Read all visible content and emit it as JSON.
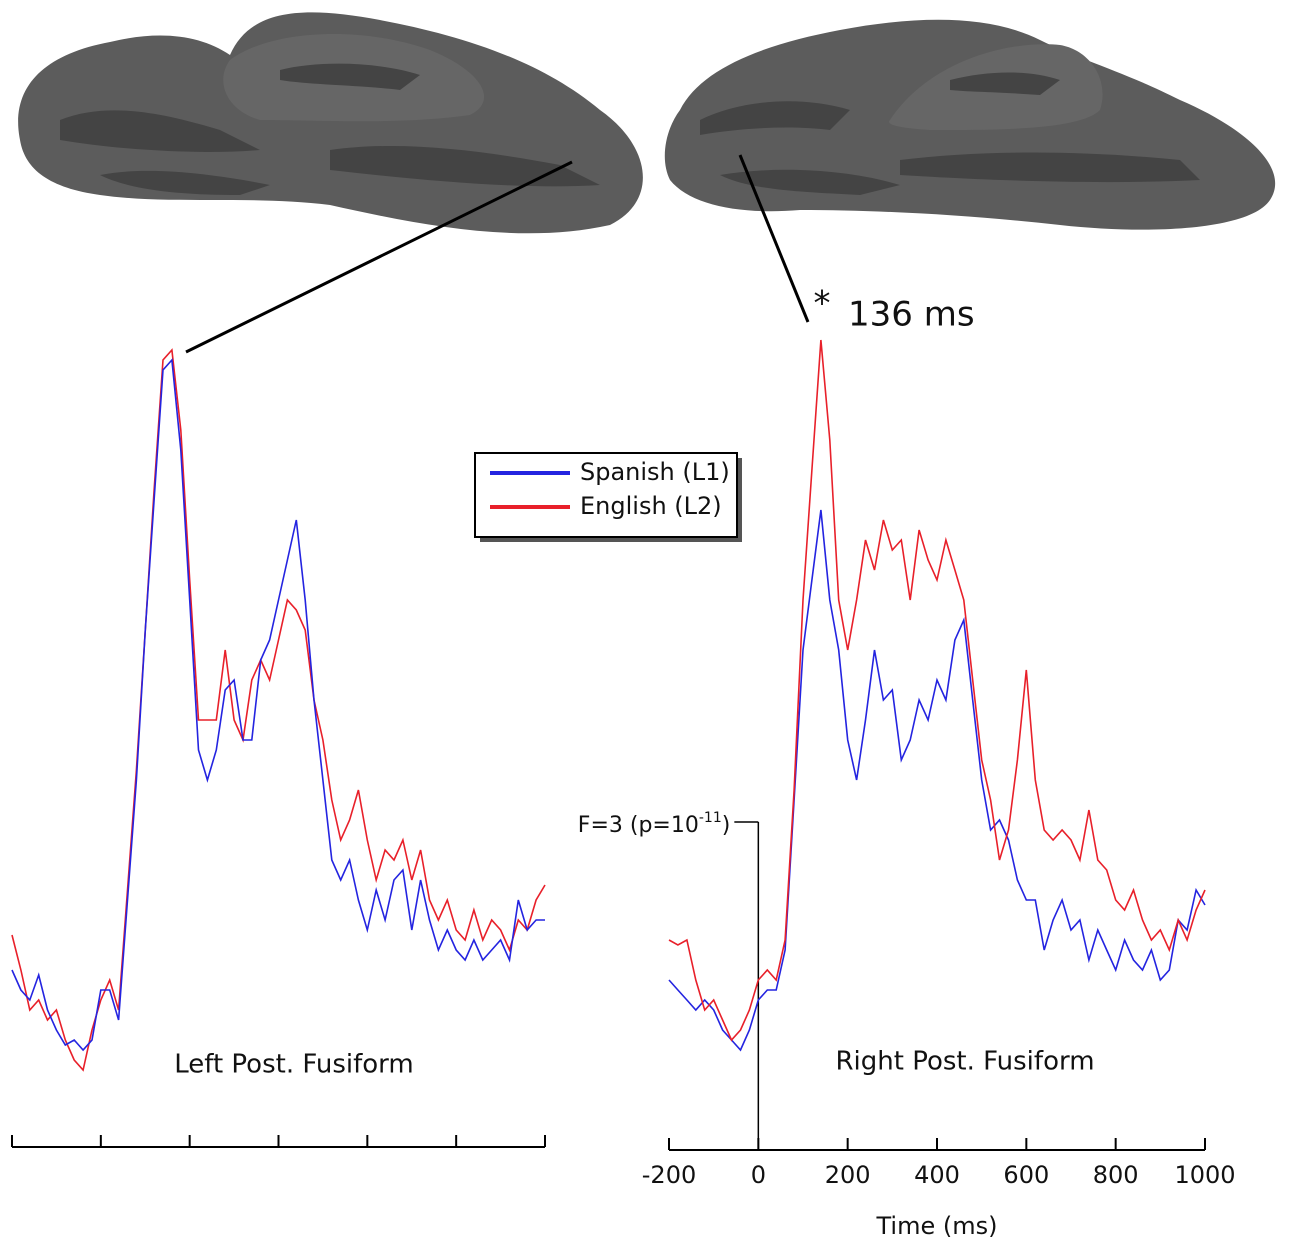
{
  "chart_data": [
    {
      "type": "line",
      "title": "Left Post. Fusiform",
      "show_tick_labels": false,
      "x": [
        -200,
        -180,
        -160,
        -140,
        -120,
        -100,
        -80,
        -60,
        -40,
        -20,
        0,
        20,
        40,
        60,
        80,
        100,
        120,
        140,
        160,
        180,
        200,
        220,
        240,
        260,
        280,
        300,
        320,
        340,
        360,
        380,
        400,
        420,
        440,
        460,
        480,
        500,
        520,
        540,
        560,
        580,
        600,
        620,
        640,
        660,
        680,
        700,
        720,
        740,
        760,
        780,
        800,
        820,
        840,
        860,
        880,
        900,
        920,
        940,
        960,
        980,
        1000
      ],
      "xlim": [
        -200,
        1000
      ],
      "xticks": [
        -200,
        0,
        200,
        400,
        600,
        800,
        1000
      ],
      "ylim": [
        0,
        80
      ],
      "series": [
        {
          "color": "#e8202a",
          "values": [
            16.5,
            13,
            9,
            10,
            8,
            9,
            6,
            4,
            3,
            7,
            10,
            12,
            9,
            21,
            33,
            47,
            61,
            74,
            75,
            67,
            52,
            38,
            38,
            38,
            45,
            38,
            36,
            42,
            44,
            42,
            46,
            50,
            49,
            47,
            40,
            36,
            30,
            26,
            28,
            31,
            26,
            22,
            25,
            24,
            26,
            22,
            25,
            20,
            18,
            20,
            17,
            16,
            19,
            16,
            18,
            17,
            15,
            18,
            17,
            20,
            21.5
          ]
        },
        {
          "color": "#2424e0",
          "values": [
            13,
            11,
            10,
            12.5,
            9,
            7,
            5.5,
            6,
            5,
            6,
            11,
            11,
            8,
            20,
            32,
            47,
            60,
            73,
            74,
            65,
            50,
            35,
            32,
            35,
            41,
            42,
            36,
            36,
            44,
            46,
            50,
            54,
            58,
            50,
            40,
            32,
            24,
            22,
            24,
            20,
            17,
            21,
            18,
            22,
            23,
            17,
            22,
            18,
            15,
            17,
            15,
            14,
            16,
            14,
            15,
            16,
            14,
            20,
            17,
            18,
            18
          ]
        }
      ]
    },
    {
      "type": "line",
      "title": "Right Post. Fusiform",
      "xlabel": "Time (ms)",
      "show_tick_labels": true,
      "x": [
        -200,
        -180,
        -160,
        -140,
        -120,
        -100,
        -80,
        -60,
        -40,
        -20,
        0,
        20,
        40,
        60,
        80,
        100,
        120,
        140,
        160,
        180,
        200,
        220,
        240,
        260,
        280,
        300,
        320,
        340,
        360,
        380,
        400,
        420,
        440,
        460,
        480,
        500,
        520,
        540,
        560,
        580,
        600,
        620,
        640,
        660,
        680,
        700,
        720,
        740,
        760,
        780,
        800,
        820,
        840,
        860,
        880,
        900,
        920,
        940,
        960,
        980,
        1000
      ],
      "xlim": [
        -200,
        1000
      ],
      "xticks": [
        -200,
        0,
        200,
        400,
        600,
        800,
        1000
      ],
      "ylim": [
        0,
        80
      ],
      "series": [
        {
          "name": "Spanish (L1)",
          "color": "#2424e0",
          "values": [
            12,
            11,
            10,
            9,
            10,
            9,
            7,
            6,
            5,
            7,
            10,
            11,
            11,
            15,
            30,
            45,
            52,
            59,
            50,
            45,
            36,
            32,
            38,
            45,
            40,
            41,
            34,
            36,
            40,
            38,
            42,
            40,
            46,
            48,
            40,
            32,
            27,
            28,
            26,
            22,
            20,
            20,
            15,
            18,
            20,
            17,
            18,
            14,
            17,
            15,
            13,
            16,
            14,
            13,
            15,
            12,
            13,
            18,
            17,
            21,
            19.5
          ]
        },
        {
          "name": "English (L2)",
          "color": "#e8202a",
          "values": [
            16,
            15.5,
            16,
            12,
            9,
            10,
            8,
            6,
            7,
            9,
            12,
            13,
            12,
            16,
            31,
            50,
            63,
            76,
            66,
            50,
            45,
            50,
            56,
            53,
            58,
            55,
            56,
            50,
            57,
            54,
            52,
            56,
            53,
            50,
            42,
            34,
            30,
            24,
            27,
            34,
            43,
            32,
            27,
            26,
            27,
            26,
            24,
            29,
            24,
            23,
            20,
            19,
            21,
            18,
            16,
            17,
            15,
            18,
            16,
            19,
            21
          ]
        }
      ],
      "peak_annotation": {
        "marker": "*",
        "text": "136 ms"
      },
      "threshold": {
        "x": 0,
        "text": "F=3 (p=10",
        "sup": "-11",
        "close": ")"
      }
    }
  ]
}
